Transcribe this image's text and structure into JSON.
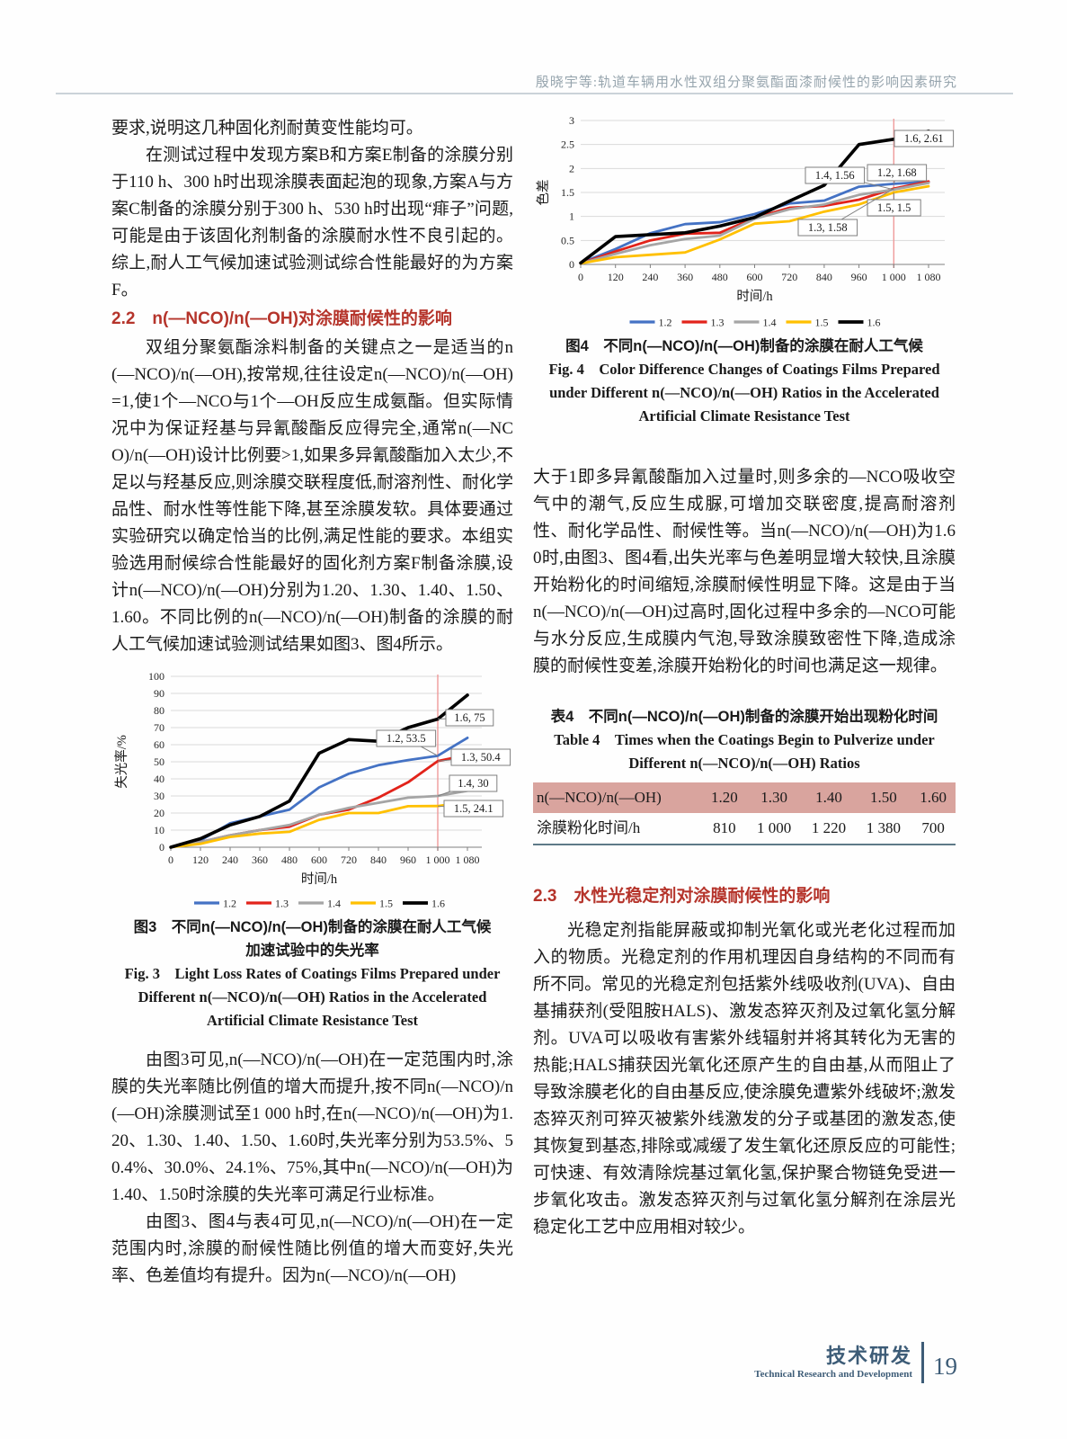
{
  "page": {
    "header": {
      "running_title": "殷晓宇等:轨道车辆用水性双组分聚氨酯面漆耐候性的影响因素研究"
    },
    "footer": {
      "section_cn": "技术研发",
      "section_en": "Technical Research and Development",
      "page_number": "19"
    }
  },
  "left_column": {
    "para1": "要求,说明这几种固化剂耐黄变性能均可。",
    "para2": "在测试过程中发现方案B和方案E制备的涂膜分别于110 h、300 h时出现涂膜表面起泡的现象,方案A与方案C制备的涂膜分别于300 h、530 h时出现“痱子”问题,可能是由于该固化剂制备的涂膜耐水性不良引起的。综上,耐人工气候加速试验测试综合性能最好的为方案F。",
    "heading_2_2": "2.2　n(—NCO)/n(—OH)对涂膜耐候性的影响",
    "para3": "双组分聚氨酯涂料制备的关键点之一是适当的n(—NCO)/n(—OH),按常规,往往设定n(—NCO)/n(—OH)=1,使1个—NCO与1个—OH反应生成氨酯。但实际情况中为保证羟基与异氰酸酯反应得完全,通常n(—NCO)/n(—OH)设计比例要>1,如果多异氰酸酯加入太少,不足以与羟基反应,则涂膜交联程度低,耐溶剂性、耐化学品性、耐水性等性能下降,甚至涂膜发软。具体要通过实验研究以确定恰当的比例,满足性能的要求。本组实验选用耐候综合性能最好的固化剂方案F制备涂膜,设计n(—NCO)/n(—OH)分别为1.20、1.30、1.40、1.50、1.60。不同比例的n(—NCO)/n(—OH)制备的涂膜的耐人工气候加速试验测试结果如图3、图4所示。",
    "fig3_caption_cn1": "图3　不同n(—NCO)/n(—OH)制备的涂膜在耐人工气候",
    "fig3_caption_cn2": "加速试验中的失光率",
    "fig3_caption_en": "Fig. 3　Light Loss Rates of Coatings Films Prepared under Different n(—NCO)/n(—OH) Ratios in the Accelerated Artificial Climate Resistance Test",
    "para4": "由图3可见,n(—NCO)/n(—OH)在一定范围内时,涂膜的失光率随比例值的增大而提升,按不同n(—NCO)/n(—OH)涂膜测试至1 000 h时,在n(—NCO)/n(—OH)为1.20、1.30、1.40、1.50、1.60时,失光率分别为53.5%、50.4%、30.0%、24.1%、75%,其中n(—NCO)/n(—OH)为1.40、1.50时涂膜的失光率可满足行业标准。",
    "para5": "由图3、图4与表4可见,n(—NCO)/n(—OH)在一定范围内时,涂膜的耐候性随比例值的增大而变好,失光率、色差值均有提升。因为n(—NCO)/n(—OH)"
  },
  "right_column": {
    "fig4_caption_cn": "图4　不同n(—NCO)/n(—OH)制备的涂膜在耐人工气候",
    "fig4_caption_en": "Fig. 4　Color Difference Changes of Coatings Films Prepared under Different n(—NCO)/n(—OH) Ratios in the Accelerated Artificial Climate Resistance Test",
    "para1": "大于1即多异氰酸酯加入过量时,则多余的—NCO吸收空气中的潮气,反应生成脲,可增加交联密度,提高耐溶剂性、耐化学品性、耐候性等。当n(—NCO)/n(—OH)为1.60时,由图3、图4看,出失光率与色差明显增大较快,且涂膜开始粉化的时间缩短,涂膜耐候性明显下降。这是由于当n(—NCO)/n(—OH)过高时,固化过程中多余的—NCO可能与水分反应,生成膜内气泡,导致涂膜致密性下降,造成涂膜的耐候性变差,涂膜开始粉化的时间也满足这一规律。",
    "table4": {
      "title_cn": "表4　不同n(—NCO)/n(—OH)制备的涂膜开始出现粉化时间",
      "title_en": "Table 4　Times when the Coatings Begin to Pulverize under Different n(—NCO)/n(—OH) Ratios",
      "header": [
        "n(—NCO)/n(—OH)",
        "1.20",
        "1.30",
        "1.40",
        "1.50",
        "1.60"
      ],
      "rows": [
        [
          "涂膜粉化时间/h",
          "810",
          "1 000",
          "1 220",
          "1 380",
          "700"
        ]
      ],
      "header_bg": "#d9a49e"
    },
    "heading_2_3": "2.3　水性光稳定剂对涂膜耐候性的影响",
    "para2": "光稳定剂指能屏蔽或抑制光氧化或光老化过程而加入的物质。光稳定剂的作用机理因自身结构的不同而有所不同。常见的光稳定剂包括紫外线吸收剂(UVA)、自由基捕获剂(受阻胺HALS)、激发态猝灭剂及过氧化氢分解剂。UVA可以吸收有害紫外线辐射并将其转化为无害的热能;HALS捕获因光氧化还原产生的自由基,从而阻止了导致涂膜老化的自由基反应,使涂膜免遭紫外线破坏;激发态猝灭剂可猝灭被紫外线激发的分子或基团的激发态,使其恢复到基态,排除或减缓了发生氧化还原反应的可能性;可快速、有效清除烷基过氧化氢,保护聚合物链免受进一步氧化攻击。激发态猝灭剂与过氧化氢分解剂在涂层光稳定化工艺中应用相对较少。"
  },
  "chart_data": [
    {
      "id": "fig3",
      "type": "line",
      "title": "",
      "xlabel": "时间/h",
      "ylabel": "失光率/%",
      "categories": [
        "0",
        "120",
        "240",
        "360",
        "480",
        "600",
        "720",
        "840",
        "960",
        "1 000",
        "1 080"
      ],
      "ylim": [
        0,
        100
      ],
      "ytick_step": 10,
      "grid": true,
      "legend_position": "bottom",
      "marker_line": {
        "x_index": 9,
        "color": "#ef9b9b"
      },
      "series": [
        {
          "name": "1.2",
          "color": "#4472c4",
          "values": [
            0,
            4,
            14,
            18,
            22,
            35,
            43,
            48,
            51,
            53.5,
            64
          ]
        },
        {
          "name": "1.3",
          "color": "#e2231a",
          "values": [
            0,
            3,
            7,
            10,
            12,
            19,
            22,
            29,
            38,
            50.4,
            54
          ]
        },
        {
          "name": "1.4",
          "color": "#a5a5a5",
          "values": [
            0,
            3,
            7,
            10,
            13,
            19,
            23,
            26,
            29,
            30,
            33
          ]
        },
        {
          "name": "1.5",
          "color": "#ffc000",
          "values": [
            0,
            2,
            6,
            8,
            9,
            16,
            20,
            20,
            24,
            24.1,
            26.5
          ]
        },
        {
          "name": "1.6",
          "color": "#000000",
          "values": [
            0,
            5,
            13,
            18,
            27,
            55,
            63,
            62,
            70,
            75,
            89
          ]
        }
      ],
      "annotations": [
        {
          "text": "1.6, 75",
          "series": "1.6",
          "xi": 9
        },
        {
          "text": "1.2, 53.5",
          "series": "1.2",
          "xi": 9
        },
        {
          "text": "1.3, 50.4",
          "series": "1.3",
          "xi": 9
        },
        {
          "text": "1.4, 30",
          "series": "1.4",
          "xi": 9
        },
        {
          "text": "1.5, 24.1",
          "series": "1.5",
          "xi": 9
        }
      ]
    },
    {
      "id": "fig4",
      "type": "line",
      "title": "",
      "xlabel": "时间/h",
      "ylabel": "色差",
      "categories": [
        "0",
        "120",
        "240",
        "360",
        "480",
        "600",
        "720",
        "840",
        "960",
        "1 000",
        "1 080"
      ],
      "ylim": [
        0,
        3
      ],
      "ytick_step": 0.5,
      "grid": true,
      "legend_position": "bottom",
      "marker_line": {
        "x_index": 9,
        "color": "#ef9b9b"
      },
      "series": [
        {
          "name": "1.2",
          "color": "#4472c4",
          "values": [
            0.03,
            0.32,
            0.65,
            0.84,
            0.88,
            1.05,
            1.27,
            1.33,
            1.62,
            1.68,
            1.72
          ]
        },
        {
          "name": "1.3",
          "color": "#e2231a",
          "values": [
            0.02,
            0.27,
            0.5,
            0.64,
            0.66,
            0.97,
            1.18,
            1.22,
            1.35,
            1.58,
            1.73
          ]
        },
        {
          "name": "1.4",
          "color": "#a5a5a5",
          "values": [
            0.02,
            0.22,
            0.4,
            0.53,
            0.6,
            0.95,
            1.15,
            1.25,
            1.45,
            1.56,
            1.7
          ]
        },
        {
          "name": "1.5",
          "color": "#ffc000",
          "values": [
            0.02,
            0.15,
            0.2,
            0.25,
            0.52,
            0.85,
            0.9,
            1.1,
            1.25,
            1.5,
            1.63
          ]
        },
        {
          "name": "1.6",
          "color": "#000000",
          "values": [
            0.03,
            0.58,
            0.62,
            0.66,
            0.8,
            0.98,
            1.32,
            1.65,
            2.5,
            2.61,
            2.78
          ]
        }
      ],
      "annotations": [
        {
          "text": "1.6, 2.61",
          "series": "1.6",
          "xi": 9
        },
        {
          "text": "1.2, 1.68",
          "series": "1.2",
          "xi": 9
        },
        {
          "text": "1.4, 1.56",
          "series": "1.4",
          "xi": 9
        },
        {
          "text": "1.5, 1.5",
          "series": "1.5",
          "xi": 9
        },
        {
          "text": "1.3, 1.58",
          "series": "1.3",
          "xi": 9
        }
      ]
    }
  ]
}
